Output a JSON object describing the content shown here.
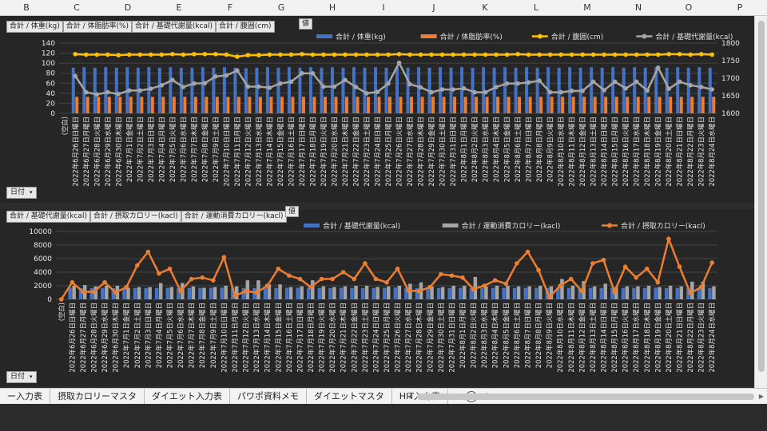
{
  "column_headers": [
    "B",
    "C",
    "D",
    "E",
    "F",
    "G",
    "H",
    "I",
    "J",
    "K",
    "L",
    "M",
    "N",
    "O",
    "P"
  ],
  "chart1": {
    "field_buttons": [
      "合計 / 体重(kg)",
      "合計 / 体脂肪率(%)",
      "合計 / 基礎代謝量(kcal)",
      "合計 / 腹囲(cm)"
    ],
    "value_tag": "値",
    "date_filter": "日付",
    "legend": [
      "合計 / 体重(kg)",
      "合計 / 体脂肪率(%)",
      "合計 / 腹囲(cm)",
      "合計 / 基礎代謝量(kcal)"
    ]
  },
  "chart2": {
    "field_buttons": [
      "合計 / 基礎代謝量(kcal)",
      "合計 / 摂取カロリー(kacl)",
      "合計 / 運動消費カロリー(kacl)"
    ],
    "value_tag": "値",
    "date_filter": "日付",
    "legend": [
      "合計 / 基礎代謝量(kcal)",
      "合計 / 運動消費カロリー(kacl)",
      "合計 / 摂取カロリー(kacl)"
    ]
  },
  "tabs": [
    "ー入力表",
    "摂取カロリーマスタ",
    "ダイエット入力表",
    "パワポ資料メモ",
    "ダイエットマスタ",
    "HIT入力表"
  ],
  "tab_more": "...",
  "colors": {
    "blue": "#4472c4",
    "orange": "#ed7d31",
    "yellow": "#ffc000",
    "gray": "#a5a5a5",
    "chart_bg": "#262626"
  },
  "chart_data": [
    {
      "type": "bar",
      "categories": [
        "(空白)",
        "2022年6月26日日曜日",
        "2022年6月27日月曜日",
        "2022年6月28日火曜日",
        "2022年6月29日水曜日",
        "2022年6月30日木曜日",
        "2022年7月1日金曜日",
        "2022年7月2日土曜日",
        "2022年7月3日日曜日",
        "2022年7月4日月曜日",
        "2022年7月5日火曜日",
        "2022年7月6日水曜日",
        "2022年7月7日木曜日",
        "2022年7月8日金曜日",
        "2022年7月9日土曜日",
        "2022年7月10日日曜日",
        "2022年7月11日月曜日",
        "2022年7月12日火曜日",
        "2022年7月13日水曜日",
        "2022年7月14日木曜日",
        "2022年7月15日金曜日",
        "2022年7月16日土曜日",
        "2022年7月17日日曜日",
        "2022年7月18日月曜日",
        "2022年7月19日火曜日",
        "2022年7月20日水曜日",
        "2022年7月21日木曜日",
        "2022年7月22日金曜日",
        "2022年7月23日土曜日",
        "2022年7月24日日曜日",
        "2022年7月25日月曜日",
        "2022年7月26日火曜日",
        "2022年7月27日水曜日",
        "2022年7月28日木曜日",
        "2022年7月29日金曜日",
        "2022年7月30日土曜日",
        "2022年7月31日日曜日",
        "2022年8月1日月曜日",
        "2022年8月2日火曜日",
        "2022年8月3日水曜日",
        "2022年8月4日木曜日",
        "2022年8月5日金曜日",
        "2022年8月6日土曜日",
        "2022年8月7日日曜日",
        "2022年8月8日月曜日",
        "2022年8月9日火曜日",
        "2022年8月10日水曜日",
        "2022年8月11日木曜日",
        "2022年8月12日金曜日",
        "2022年8月13日土曜日",
        "2022年8月14日日曜日",
        "2022年8月15日月曜日",
        "2022年8月16日火曜日",
        "2022年8月17日水曜日",
        "2022年8月18日木曜日",
        "2022年8月19日金曜日",
        "2022年8月20日土曜日",
        "2022年8月21日日曜日",
        "2022年8月22日月曜日",
        "2022年8月23日火曜日",
        "2022年8月24日水曜日"
      ],
      "series": [
        {
          "name": "合計 / 体重(kg)",
          "kind": "bar",
          "axis": "left",
          "values": [
            0,
            91,
            92,
            91,
            92,
            91,
            92,
            91,
            92,
            91,
            92,
            91,
            91,
            92,
            91,
            92,
            91,
            90,
            91,
            92,
            91,
            92,
            91,
            92,
            91,
            92,
            91,
            92,
            91,
            92,
            91,
            92,
            91,
            92,
            91,
            92,
            91,
            92,
            91,
            92,
            91,
            92,
            91,
            92,
            91,
            92,
            91,
            92,
            91,
            92,
            91,
            92,
            91,
            92,
            91,
            92,
            91,
            92,
            91,
            92,
            91
          ]
        },
        {
          "name": "合計 / 体脂肪率(%)",
          "kind": "bar",
          "axis": "left",
          "values": [
            0,
            33,
            33,
            33,
            33,
            33,
            33,
            33,
            33,
            33,
            33,
            33,
            33,
            33,
            33,
            33,
            33,
            33,
            33,
            33,
            33,
            33,
            33,
            33,
            33,
            33,
            33,
            33,
            33,
            33,
            33,
            33,
            33,
            33,
            33,
            33,
            33,
            33,
            33,
            33,
            33,
            33,
            33,
            33,
            33,
            33,
            33,
            33,
            33,
            33,
            33,
            33,
            33,
            33,
            33,
            33,
            33,
            33,
            33,
            33,
            33
          ]
        },
        {
          "name": "合計 / 腹囲(cm)",
          "kind": "line",
          "axis": "left",
          "values": [
            null,
            118,
            117,
            117,
            117,
            116,
            117,
            117,
            117,
            117,
            118,
            117,
            118,
            118,
            118,
            117,
            113,
            116,
            116,
            117,
            117,
            117,
            118,
            117,
            117,
            117,
            117,
            117,
            117,
            117,
            117,
            118,
            117,
            117,
            117,
            117,
            117,
            117,
            117,
            117,
            117,
            117,
            118,
            117,
            117,
            117,
            117,
            117,
            117,
            117,
            117,
            117,
            117,
            117,
            117,
            117,
            118,
            118,
            117,
            118,
            117
          ]
        },
        {
          "name": "合計 / 基礎代謝量(kcal)",
          "kind": "line",
          "axis": "right",
          "values": [
            null,
            1706,
            1660,
            1654,
            1660,
            1655,
            1665,
            1665,
            1670,
            1680,
            1695,
            1675,
            1685,
            1686,
            1705,
            1708,
            1722,
            1676,
            1676,
            1673,
            1685,
            1690,
            1714,
            1714,
            1676,
            1676,
            1695,
            1675,
            1657,
            1661,
            1685,
            1744,
            1683,
            1674,
            1660,
            1668,
            1668,
            1671,
            1660,
            1660,
            1675,
            1685,
            1685,
            1688,
            1693,
            1660,
            1660,
            1664,
            1664,
            1690,
            1666,
            1690,
            1671,
            1690,
            1665,
            1730,
            1670,
            1690,
            1680,
            1675,
            1668
          ]
        }
      ],
      "ylim": [
        0,
        140
      ],
      "y2lim": [
        1600,
        1800
      ],
      "yticks": [
        0,
        20,
        40,
        60,
        80,
        100,
        120,
        140
      ],
      "y2ticks": [
        1600,
        1650,
        1700,
        1750,
        1800
      ]
    },
    {
      "type": "bar",
      "categories": [
        "(空白)",
        "2022年6月26日日曜日",
        "2022年6月27日月曜日",
        "2022年6月28日火曜日",
        "2022年6月29日水曜日",
        "2022年6月30日木曜日",
        "2022年7月1日金曜日",
        "2022年7月2日土曜日",
        "2022年7月3日日曜日",
        "2022年7月4日月曜日",
        "2022年7月5日火曜日",
        "2022年7月6日水曜日",
        "2022年7月7日木曜日",
        "2022年7月8日金曜日",
        "2022年7月9日土曜日",
        "2022年7月10日日曜日",
        "2022年7月11日月曜日",
        "2022年7月12日火曜日",
        "2022年7月13日水曜日",
        "2022年7月14日木曜日",
        "2022年7月15日金曜日",
        "2022年7月16日土曜日",
        "2022年7月17日日曜日",
        "2022年7月18日月曜日",
        "2022年7月19日火曜日",
        "2022年7月20日水曜日",
        "2022年7月21日木曜日",
        "2022年7月22日金曜日",
        "2022年7月23日土曜日",
        "2022年7月24日日曜日",
        "2022年7月25日月曜日",
        "2022年7月26日火曜日",
        "2022年7月27日水曜日",
        "2022年7月28日木曜日",
        "2022年7月29日金曜日",
        "2022年7月30日土曜日",
        "2022年7月31日日曜日",
        "2022年8月1日月曜日",
        "2022年8月2日火曜日",
        "2022年8月3日水曜日",
        "2022年8月4日木曜日",
        "2022年8月5日金曜日",
        "2022年8月6日土曜日",
        "2022年8月7日日曜日",
        "2022年8月8日月曜日",
        "2022年8月9日火曜日",
        "2022年8月10日水曜日",
        "2022年8月11日木曜日",
        "2022年8月12日金曜日",
        "2022年8月13日土曜日",
        "2022年8月14日日曜日",
        "2022年8月15日月曜日",
        "2022年8月16日火曜日",
        "2022年8月17日水曜日",
        "2022年8月18日木曜日",
        "2022年8月19日金曜日",
        "2022年8月20日土曜日",
        "2022年8月21日日曜日",
        "2022年8月22日月曜日",
        "2022年8月23日火曜日",
        "2022年8月24日水曜日"
      ],
      "series": [
        {
          "name": "合計 / 基礎代謝量(kcal)",
          "kind": "bar",
          "values": [
            0,
            1700,
            1660,
            1650,
            1660,
            1650,
            1660,
            1660,
            1670,
            1680,
            1690,
            1670,
            1680,
            1680,
            1700,
            1710,
            1720,
            1670,
            1670,
            1670,
            1680,
            1690,
            1710,
            1710,
            1670,
            1670,
            1690,
            1670,
            1650,
            1660,
            1680,
            1740,
            1680,
            1670,
            1660,
            1660,
            1660,
            1670,
            1660,
            1660,
            1670,
            1680,
            1680,
            1690,
            1690,
            1660,
            1660,
            1660,
            1660,
            1690,
            1660,
            1690,
            1670,
            1690,
            1660,
            1730,
            1670,
            1690,
            1680,
            1670,
            1660
          ]
        },
        {
          "name": "合計 / 運動消費カロリー(kacl)",
          "kind": "bar",
          "values": [
            0,
            2000,
            2100,
            1900,
            2000,
            2000,
            1700,
            1800,
            1800,
            2400,
            1800,
            2400,
            1900,
            1700,
            1800,
            2000,
            1900,
            2800,
            2800,
            2200,
            2200,
            1800,
            1900,
            2800,
            1900,
            1800,
            1900,
            2000,
            2000,
            1800,
            1900,
            2000,
            2300,
            2500,
            1900,
            1800,
            2000,
            2000,
            3300,
            1900,
            2000,
            2000,
            1900,
            1900,
            2000,
            1900,
            3000,
            2000,
            2700,
            1900,
            2300,
            1800,
            1900,
            1900,
            2000,
            1800,
            2000,
            1900,
            2600,
            2600,
            1900
          ]
        },
        {
          "name": "合計 / 摂取カロリー(kacl)",
          "kind": "line",
          "values": [
            0,
            2500,
            1100,
            1100,
            2500,
            1000,
            1800,
            5000,
            7000,
            3800,
            4500,
            1200,
            3000,
            3200,
            2800,
            6200,
            500,
            1200,
            1000,
            2000,
            4500,
            3500,
            3000,
            1800,
            3000,
            3000,
            4000,
            3000,
            5300,
            3000,
            2500,
            4500,
            1300,
            1200,
            1800,
            3700,
            3500,
            3200,
            1500,
            2000,
            2800,
            2300,
            5300,
            7000,
            4300,
            300,
            2000,
            3000,
            1200,
            5300,
            5800,
            1100,
            4800,
            3200,
            4500,
            2500,
            8900,
            4800,
            900,
            1800,
            5400
          ]
        }
      ],
      "ylim": [
        0,
        10000
      ],
      "yticks": [
        0,
        2000,
        4000,
        6000,
        8000,
        10000
      ]
    }
  ]
}
